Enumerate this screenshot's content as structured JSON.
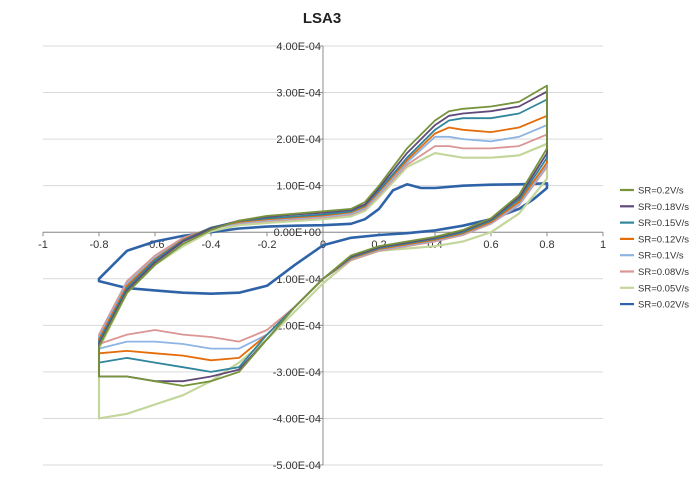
{
  "chart_data": {
    "type": "line",
    "title": "LSA3",
    "xlabel": "",
    "ylabel": "",
    "xlim": [
      -1,
      1
    ],
    "ylim": [
      -0.0005,
      0.0004
    ],
    "x_ticks": [
      -1,
      -0.8,
      -0.6,
      -0.4,
      -0.2,
      0,
      0.2,
      0.4,
      0.6,
      0.8,
      1
    ],
    "x_tick_labels": [
      "-1",
      "-0.8",
      "-0.6",
      "-0.4",
      "-0.2",
      "0",
      "0.2",
      "0.4",
      "0.6",
      "0.8",
      "1"
    ],
    "y_ticks": [
      0.0004,
      0.0003,
      0.0002,
      0.0001,
      0,
      -0.0001,
      -0.0002,
      -0.0003,
      -0.0004,
      -0.0005
    ],
    "y_tick_labels": [
      "4.00E-04",
      "3.00E-04",
      "2.00E-04",
      "1.00E-04",
      "0.00E+00",
      "-1.00E-04",
      "-2.00E-04",
      "-3.00E-04",
      "-4.00E-04",
      "-5.00E-04"
    ],
    "grid": "horizontal",
    "legend_position": "right",
    "series": [
      {
        "name": "SR=0.2V/s",
        "color": "#77933c",
        "x": [
          -0.8,
          -0.7,
          -0.6,
          -0.5,
          -0.4,
          -0.3,
          -0.2,
          -0.1,
          0,
          0.1,
          0.15,
          0.2,
          0.3,
          0.4,
          0.45,
          0.5,
          0.6,
          0.7,
          0.8,
          0.8,
          0.7,
          0.6,
          0.5,
          0.4,
          0.3,
          0.2,
          0.1,
          0,
          -0.1,
          -0.2,
          -0.3,
          -0.4,
          -0.5,
          -0.6,
          -0.7,
          -0.8,
          -0.8
        ],
        "y": [
          -0.000245,
          -0.00013,
          -7e-05,
          -2.5e-05,
          5e-06,
          2.5e-05,
          3.5e-05,
          4e-05,
          4.5e-05,
          5e-05,
          6.5e-05,
          0.0001,
          0.00018,
          0.00024,
          0.00026,
          0.000265,
          0.00027,
          0.00028,
          0.000315,
          0.00018,
          8e-05,
          3e-05,
          5e-06,
          -1e-05,
          -2e-05,
          -3e-05,
          -5e-05,
          -0.0001,
          -0.00016,
          -0.00023,
          -0.0003,
          -0.00032,
          -0.00033,
          -0.00032,
          -0.00031,
          -0.00031,
          -0.000245
        ]
      },
      {
        "name": "SR=0.18V/s",
        "color": "#604a7b",
        "x": [
          -0.8,
          -0.7,
          -0.6,
          -0.5,
          -0.4,
          -0.3,
          -0.2,
          -0.1,
          0,
          0.1,
          0.15,
          0.2,
          0.3,
          0.4,
          0.45,
          0.5,
          0.6,
          0.7,
          0.8,
          0.8,
          0.7,
          0.6,
          0.5,
          0.4,
          0.3,
          0.2,
          0.1,
          0,
          -0.1,
          -0.2,
          -0.3,
          -0.4,
          -0.5,
          -0.6,
          -0.7,
          -0.8,
          -0.8
        ],
        "y": [
          -0.00024,
          -0.000125,
          -6.5e-05,
          -2e-05,
          8e-06,
          2.5e-05,
          3.3e-05,
          3.8e-05,
          4.2e-05,
          4.8e-05,
          6e-05,
          9.5e-05,
          0.00017,
          0.00023,
          0.00025,
          0.000255,
          0.00026,
          0.00027,
          0.000302,
          0.00017,
          7.5e-05,
          2.8e-05,
          3e-06,
          -1.2e-05,
          -2.2e-05,
          -3.2e-05,
          -5.2e-05,
          -0.0001,
          -0.00016,
          -0.00023,
          -0.000295,
          -0.00031,
          -0.00032,
          -0.00032,
          -0.00031,
          -0.00031,
          -0.00024
        ]
      },
      {
        "name": "SR=0.15V/s",
        "color": "#31859c",
        "x": [
          -0.8,
          -0.7,
          -0.6,
          -0.5,
          -0.4,
          -0.3,
          -0.2,
          -0.1,
          0,
          0.1,
          0.15,
          0.2,
          0.3,
          0.4,
          0.45,
          0.5,
          0.6,
          0.7,
          0.8,
          0.8,
          0.7,
          0.6,
          0.5,
          0.4,
          0.3,
          0.2,
          0.1,
          0,
          -0.1,
          -0.2,
          -0.3,
          -0.4,
          -0.5,
          -0.6,
          -0.7,
          -0.8,
          -0.8
        ],
        "y": [
          -0.000235,
          -0.00012,
          -6e-05,
          -1.8e-05,
          1e-05,
          2.4e-05,
          3e-05,
          3.4e-05,
          3.8e-05,
          4.5e-05,
          5.8e-05,
          9e-05,
          0.00016,
          0.00022,
          0.00024,
          0.000245,
          0.000245,
          0.000255,
          0.000285,
          0.00016,
          7e-05,
          2.5e-05,
          0.0,
          -1.4e-05,
          -2.4e-05,
          -3.4e-05,
          -5.4e-05,
          -0.0001,
          -0.00016,
          -0.00022,
          -0.00029,
          -0.0003,
          -0.00029,
          -0.00028,
          -0.00027,
          -0.00028,
          -0.000235
        ]
      },
      {
        "name": "SR=0.12V/s",
        "color": "#e46c0a",
        "x": [
          -0.8,
          -0.7,
          -0.6,
          -0.5,
          -0.4,
          -0.3,
          -0.2,
          -0.1,
          0,
          0.1,
          0.15,
          0.2,
          0.3,
          0.4,
          0.45,
          0.5,
          0.6,
          0.7,
          0.8,
          0.8,
          0.7,
          0.6,
          0.5,
          0.4,
          0.3,
          0.2,
          0.1,
          0,
          -0.1,
          -0.2,
          -0.3,
          -0.4,
          -0.5,
          -0.6,
          -0.7,
          -0.8,
          -0.8
        ],
        "y": [
          -0.00023,
          -0.000115,
          -5.8e-05,
          -1.6e-05,
          1e-05,
          2.2e-05,
          2.8e-05,
          3.2e-05,
          3.6e-05,
          4.3e-05,
          5.5e-05,
          8.7e-05,
          0.000155,
          0.000212,
          0.000225,
          0.00022,
          0.000215,
          0.000225,
          0.00025,
          0.00015,
          6.5e-05,
          2.2e-05,
          -2e-06,
          -1.6e-05,
          -2.6e-05,
          -3.6e-05,
          -5.6e-05,
          -0.0001,
          -0.00016,
          -0.00022,
          -0.00027,
          -0.000275,
          -0.000265,
          -0.00026,
          -0.000255,
          -0.00026,
          -0.00023
        ]
      },
      {
        "name": "SR=0.1V/s",
        "color": "#8eb4e3",
        "x": [
          -0.8,
          -0.7,
          -0.6,
          -0.5,
          -0.4,
          -0.3,
          -0.2,
          -0.1,
          0,
          0.1,
          0.15,
          0.2,
          0.3,
          0.4,
          0.45,
          0.5,
          0.6,
          0.7,
          0.8,
          0.8,
          0.7,
          0.6,
          0.5,
          0.4,
          0.3,
          0.2,
          0.1,
          0,
          -0.1,
          -0.2,
          -0.3,
          -0.4,
          -0.5,
          -0.6,
          -0.7,
          -0.8,
          -0.8
        ],
        "y": [
          -0.000225,
          -0.00011,
          -5.5e-05,
          -1.5e-05,
          8e-06,
          2e-05,
          2.6e-05,
          3e-05,
          3.4e-05,
          4e-05,
          5.2e-05,
          8.3e-05,
          0.00015,
          0.000205,
          0.000205,
          0.0002,
          0.000195,
          0.000205,
          0.00023,
          0.000145,
          6e-05,
          2e-05,
          -4e-06,
          -1.8e-05,
          -2.8e-05,
          -3.8e-05,
          -5.8e-05,
          -0.0001,
          -0.00016,
          -0.00022,
          -0.00025,
          -0.00025,
          -0.00024,
          -0.000235,
          -0.000235,
          -0.00025,
          -0.000225
        ]
      },
      {
        "name": "SR=0.08V/s",
        "color": "#d99694",
        "x": [
          -0.8,
          -0.7,
          -0.6,
          -0.5,
          -0.4,
          -0.3,
          -0.2,
          -0.1,
          0,
          0.1,
          0.15,
          0.2,
          0.3,
          0.4,
          0.45,
          0.5,
          0.6,
          0.7,
          0.8,
          0.8,
          0.7,
          0.6,
          0.5,
          0.4,
          0.3,
          0.2,
          0.1,
          0,
          -0.1,
          -0.2,
          -0.3,
          -0.4,
          -0.5,
          -0.6,
          -0.7,
          -0.8,
          -0.8
        ],
        "y": [
          -0.00022,
          -0.000105,
          -5e-05,
          -1.2e-05,
          8e-06,
          1.9e-05,
          2.4e-05,
          2.8e-05,
          3.2e-05,
          3.8e-05,
          5e-05,
          8e-05,
          0.000145,
          0.000185,
          0.000185,
          0.00018,
          0.00018,
          0.000185,
          0.00021,
          0.00014,
          5.8e-05,
          1.8e-05,
          -6e-06,
          -2e-05,
          -3e-05,
          -4e-05,
          -6e-05,
          -0.0001,
          -0.00016,
          -0.00021,
          -0.000235,
          -0.000225,
          -0.00022,
          -0.00021,
          -0.00022,
          -0.00024,
          -0.00022
        ]
      },
      {
        "name": "SR=0.05V/s",
        "color": "#c3d69b",
        "x": [
          -0.8,
          -0.7,
          -0.6,
          -0.5,
          -0.4,
          -0.3,
          -0.2,
          -0.1,
          0,
          0.1,
          0.15,
          0.2,
          0.3,
          0.4,
          0.45,
          0.5,
          0.6,
          0.7,
          0.8,
          0.8,
          0.7,
          0.6,
          0.5,
          0.4,
          0.3,
          0.2,
          0.1,
          0,
          -0.1,
          -0.2,
          -0.3,
          -0.4,
          -0.5,
          -0.6,
          -0.7,
          -0.8,
          -0.8
        ],
        "y": [
          -0.00025,
          -0.00013,
          -7e-05,
          -3e-05,
          2e-06,
          1.5e-05,
          2e-05,
          2.4e-05,
          2.8e-05,
          3.4e-05,
          4.6e-05,
          7.5e-05,
          0.00014,
          0.00017,
          0.000165,
          0.00016,
          0.00016,
          0.000165,
          0.00019,
          0.000115,
          4e-05,
          0.0,
          -2e-05,
          -3e-05,
          -3.5e-05,
          -4e-05,
          -6e-05,
          -0.00011,
          -0.00017,
          -0.00023,
          -0.00028,
          -0.00032,
          -0.00035,
          -0.00037,
          -0.00039,
          -0.0004,
          -0.00025
        ]
      },
      {
        "name": "SR=0.02V/s",
        "color": "#2e63a8",
        "x": [
          -0.8,
          -0.7,
          -0.6,
          -0.5,
          -0.4,
          -0.3,
          -0.2,
          -0.1,
          0,
          0.1,
          0.15,
          0.2,
          0.25,
          0.3,
          0.35,
          0.4,
          0.5,
          0.6,
          0.7,
          0.8,
          0.8,
          0.75,
          0.7,
          0.6,
          0.5,
          0.4,
          0.3,
          0.2,
          0.1,
          0,
          -0.1,
          -0.2,
          -0.3,
          -0.4,
          -0.5,
          -0.6,
          -0.7,
          -0.8,
          -0.8
        ],
        "y": [
          -0.0001,
          -4e-05,
          -2e-05,
          -8e-06,
          0.0,
          8e-06,
          1.2e-05,
          1.4e-05,
          1.5e-05,
          1.8e-05,
          2.8e-05,
          5e-05,
          9e-05,
          0.000103,
          9.5e-05,
          9.5e-05,
          0.0001,
          0.000102,
          0.000103,
          0.000105,
          9.5e-05,
          7e-05,
          5e-05,
          2.8e-05,
          1.4e-05,
          4e-06,
          -2e-06,
          -6e-06,
          -1.2e-05,
          -2.8e-05,
          -7e-05,
          -0.000115,
          -0.00013,
          -0.000132,
          -0.00013,
          -0.000125,
          -0.00012,
          -0.000105,
          -0.0001
        ]
      }
    ]
  }
}
